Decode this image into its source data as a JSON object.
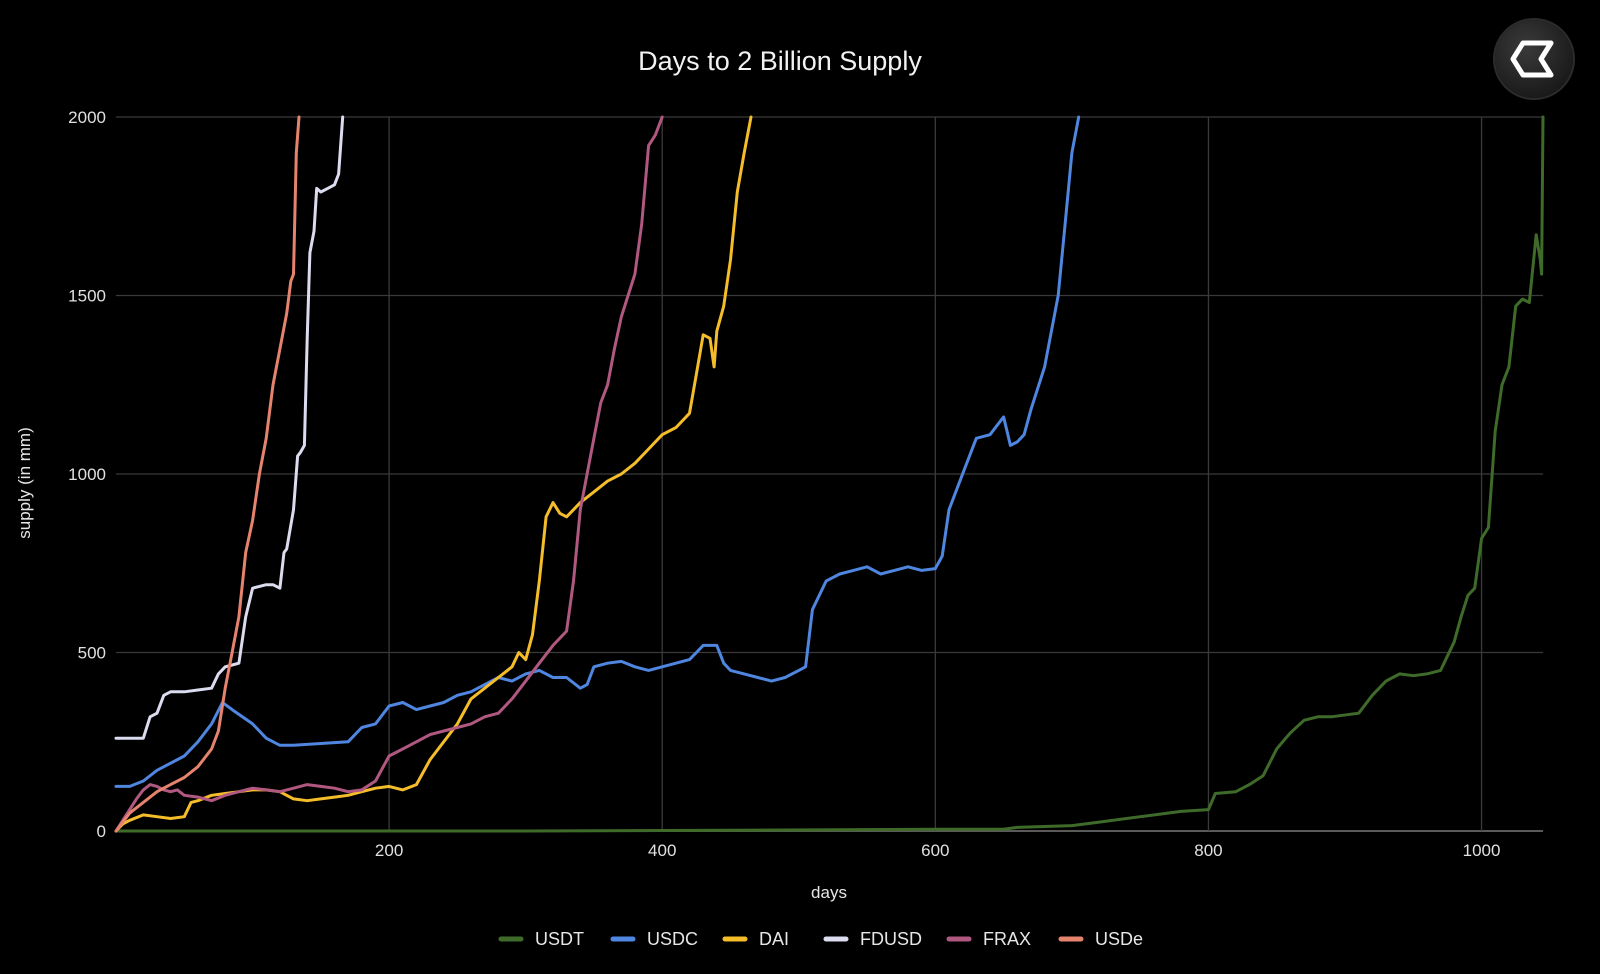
{
  "chart_data": {
    "type": "line",
    "title": "Days to 2 Billion Supply",
    "xlabel": "days",
    "ylabel": "supply (in mm)",
    "xlim": [
      0,
      1045
    ],
    "ylim": [
      0,
      2000
    ],
    "x_ticks": [
      200,
      400,
      600,
      800,
      1000
    ],
    "y_ticks": [
      0,
      500,
      1000,
      1500,
      2000
    ],
    "grid": true,
    "legend_position": "bottom-center",
    "series": [
      {
        "name": "USDT",
        "color": "#3f6b2a",
        "points": [
          [
            0,
            0
          ],
          [
            300,
            0
          ],
          [
            450,
            2
          ],
          [
            600,
            5
          ],
          [
            650,
            5
          ],
          [
            660,
            10
          ],
          [
            700,
            15
          ],
          [
            720,
            25
          ],
          [
            750,
            40
          ],
          [
            780,
            55
          ],
          [
            800,
            60
          ],
          [
            805,
            105
          ],
          [
            820,
            110
          ],
          [
            830,
            130
          ],
          [
            840,
            155
          ],
          [
            850,
            230
          ],
          [
            860,
            275
          ],
          [
            870,
            310
          ],
          [
            880,
            320
          ],
          [
            890,
            320
          ],
          [
            910,
            330
          ],
          [
            920,
            380
          ],
          [
            930,
            420
          ],
          [
            940,
            440
          ],
          [
            950,
            435
          ],
          [
            960,
            440
          ],
          [
            970,
            450
          ],
          [
            980,
            530
          ],
          [
            985,
            600
          ],
          [
            990,
            660
          ],
          [
            995,
            680
          ],
          [
            1000,
            820
          ],
          [
            1005,
            850
          ],
          [
            1010,
            1120
          ],
          [
            1015,
            1250
          ],
          [
            1020,
            1300
          ],
          [
            1025,
            1470
          ],
          [
            1030,
            1490
          ],
          [
            1035,
            1480
          ],
          [
            1040,
            1670
          ],
          [
            1043,
            1600
          ],
          [
            1044,
            1560
          ],
          [
            1045,
            2000
          ]
        ]
      },
      {
        "name": "USDC",
        "color": "#4f86e0",
        "points": [
          [
            0,
            125
          ],
          [
            10,
            125
          ],
          [
            20,
            140
          ],
          [
            30,
            170
          ],
          [
            40,
            190
          ],
          [
            50,
            210
          ],
          [
            60,
            250
          ],
          [
            70,
            300
          ],
          [
            78,
            360
          ],
          [
            85,
            340
          ],
          [
            100,
            300
          ],
          [
            110,
            260
          ],
          [
            120,
            240
          ],
          [
            130,
            240
          ],
          [
            150,
            245
          ],
          [
            170,
            250
          ],
          [
            180,
            290
          ],
          [
            190,
            300
          ],
          [
            200,
            350
          ],
          [
            210,
            360
          ],
          [
            220,
            340
          ],
          [
            230,
            350
          ],
          [
            240,
            360
          ],
          [
            250,
            380
          ],
          [
            260,
            390
          ],
          [
            270,
            410
          ],
          [
            280,
            430
          ],
          [
            290,
            420
          ],
          [
            300,
            440
          ],
          [
            310,
            450
          ],
          [
            320,
            430
          ],
          [
            330,
            430
          ],
          [
            340,
            400
          ],
          [
            345,
            410
          ],
          [
            350,
            460
          ],
          [
            360,
            470
          ],
          [
            370,
            475
          ],
          [
            380,
            460
          ],
          [
            390,
            450
          ],
          [
            400,
            460
          ],
          [
            410,
            470
          ],
          [
            420,
            480
          ],
          [
            425,
            500
          ],
          [
            430,
            520
          ],
          [
            440,
            520
          ],
          [
            445,
            470
          ],
          [
            450,
            450
          ],
          [
            460,
            440
          ],
          [
            470,
            430
          ],
          [
            480,
            420
          ],
          [
            490,
            430
          ],
          [
            500,
            450
          ],
          [
            505,
            460
          ],
          [
            510,
            620
          ],
          [
            520,
            700
          ],
          [
            530,
            720
          ],
          [
            540,
            730
          ],
          [
            550,
            740
          ],
          [
            560,
            720
          ],
          [
            570,
            730
          ],
          [
            580,
            740
          ],
          [
            590,
            730
          ],
          [
            600,
            735
          ],
          [
            605,
            770
          ],
          [
            610,
            900
          ],
          [
            620,
            1000
          ],
          [
            630,
            1100
          ],
          [
            640,
            1110
          ],
          [
            650,
            1160
          ],
          [
            655,
            1080
          ],
          [
            660,
            1090
          ],
          [
            665,
            1110
          ],
          [
            670,
            1180
          ],
          [
            680,
            1300
          ],
          [
            690,
            1500
          ],
          [
            695,
            1700
          ],
          [
            700,
            1900
          ],
          [
            705,
            2000
          ]
        ]
      },
      {
        "name": "DAI",
        "color": "#f5bd2a",
        "points": [
          [
            0,
            0
          ],
          [
            5,
            20
          ],
          [
            10,
            30
          ],
          [
            20,
            45
          ],
          [
            30,
            40
          ],
          [
            40,
            35
          ],
          [
            50,
            40
          ],
          [
            55,
            80
          ],
          [
            60,
            85
          ],
          [
            70,
            100
          ],
          [
            80,
            105
          ],
          [
            90,
            110
          ],
          [
            100,
            115
          ],
          [
            110,
            115
          ],
          [
            120,
            110
          ],
          [
            130,
            90
          ],
          [
            140,
            85
          ],
          [
            150,
            90
          ],
          [
            160,
            95
          ],
          [
            170,
            100
          ],
          [
            180,
            110
          ],
          [
            190,
            120
          ],
          [
            200,
            125
          ],
          [
            210,
            115
          ],
          [
            220,
            130
          ],
          [
            230,
            200
          ],
          [
            240,
            250
          ],
          [
            250,
            300
          ],
          [
            260,
            370
          ],
          [
            270,
            400
          ],
          [
            280,
            430
          ],
          [
            290,
            460
          ],
          [
            295,
            500
          ],
          [
            300,
            480
          ],
          [
            305,
            550
          ],
          [
            310,
            700
          ],
          [
            315,
            880
          ],
          [
            320,
            920
          ],
          [
            325,
            890
          ],
          [
            330,
            880
          ],
          [
            335,
            900
          ],
          [
            340,
            920
          ],
          [
            350,
            950
          ],
          [
            360,
            980
          ],
          [
            370,
            1000
          ],
          [
            380,
            1030
          ],
          [
            390,
            1070
          ],
          [
            400,
            1110
          ],
          [
            410,
            1130
          ],
          [
            420,
            1170
          ],
          [
            425,
            1280
          ],
          [
            430,
            1390
          ],
          [
            435,
            1380
          ],
          [
            438,
            1300
          ],
          [
            440,
            1400
          ],
          [
            445,
            1470
          ],
          [
            450,
            1600
          ],
          [
            455,
            1790
          ],
          [
            460,
            1900
          ],
          [
            465,
            2000
          ]
        ]
      },
      {
        "name": "FDUSD",
        "color": "#dcdcf0",
        "points": [
          [
            0,
            260
          ],
          [
            10,
            260
          ],
          [
            20,
            260
          ],
          [
            25,
            320
          ],
          [
            30,
            330
          ],
          [
            35,
            380
          ],
          [
            40,
            390
          ],
          [
            50,
            390
          ],
          [
            60,
            395
          ],
          [
            70,
            400
          ],
          [
            75,
            440
          ],
          [
            80,
            460
          ],
          [
            85,
            465
          ],
          [
            90,
            470
          ],
          [
            95,
            600
          ],
          [
            100,
            680
          ],
          [
            110,
            690
          ],
          [
            115,
            690
          ],
          [
            120,
            680
          ],
          [
            123,
            780
          ],
          [
            125,
            790
          ],
          [
            130,
            900
          ],
          [
            133,
            1050
          ],
          [
            135,
            1060
          ],
          [
            138,
            1080
          ],
          [
            140,
            1380
          ],
          [
            142,
            1620
          ],
          [
            145,
            1680
          ],
          [
            147,
            1800
          ],
          [
            150,
            1790
          ],
          [
            155,
            1800
          ],
          [
            160,
            1810
          ],
          [
            163,
            1840
          ],
          [
            166,
            2000
          ]
        ]
      },
      {
        "name": "FRAX",
        "color": "#b05880",
        "points": [
          [
            0,
            0
          ],
          [
            5,
            30
          ],
          [
            10,
            60
          ],
          [
            15,
            90
          ],
          [
            20,
            115
          ],
          [
            25,
            130
          ],
          [
            30,
            125
          ],
          [
            35,
            115
          ],
          [
            40,
            110
          ],
          [
            45,
            115
          ],
          [
            50,
            100
          ],
          [
            60,
            95
          ],
          [
            70,
            85
          ],
          [
            80,
            100
          ],
          [
            90,
            110
          ],
          [
            100,
            120
          ],
          [
            110,
            115
          ],
          [
            120,
            110
          ],
          [
            130,
            120
          ],
          [
            140,
            130
          ],
          [
            150,
            125
          ],
          [
            160,
            120
          ],
          [
            170,
            110
          ],
          [
            180,
            115
          ],
          [
            190,
            140
          ],
          [
            200,
            210
          ],
          [
            210,
            230
          ],
          [
            220,
            250
          ],
          [
            230,
            270
          ],
          [
            240,
            280
          ],
          [
            250,
            290
          ],
          [
            260,
            300
          ],
          [
            270,
            320
          ],
          [
            280,
            330
          ],
          [
            290,
            370
          ],
          [
            300,
            420
          ],
          [
            310,
            470
          ],
          [
            320,
            520
          ],
          [
            330,
            560
          ],
          [
            335,
            700
          ],
          [
            340,
            900
          ],
          [
            345,
            1000
          ],
          [
            350,
            1100
          ],
          [
            355,
            1200
          ],
          [
            360,
            1250
          ],
          [
            365,
            1350
          ],
          [
            370,
            1440
          ],
          [
            375,
            1500
          ],
          [
            380,
            1560
          ],
          [
            385,
            1700
          ],
          [
            390,
            1920
          ],
          [
            395,
            1950
          ],
          [
            400,
            2000
          ]
        ]
      },
      {
        "name": "USDe",
        "color": "#e6836e",
        "points": [
          [
            0,
            0
          ],
          [
            10,
            50
          ],
          [
            20,
            80
          ],
          [
            30,
            110
          ],
          [
            40,
            130
          ],
          [
            50,
            150
          ],
          [
            60,
            180
          ],
          [
            70,
            230
          ],
          [
            75,
            280
          ],
          [
            80,
            400
          ],
          [
            85,
            500
          ],
          [
            90,
            600
          ],
          [
            95,
            780
          ],
          [
            100,
            870
          ],
          [
            105,
            1000
          ],
          [
            110,
            1100
          ],
          [
            115,
            1250
          ],
          [
            120,
            1350
          ],
          [
            125,
            1450
          ],
          [
            128,
            1540
          ],
          [
            130,
            1560
          ],
          [
            132,
            1900
          ],
          [
            134,
            2000
          ]
        ]
      }
    ]
  },
  "logo": {
    "icon": "hexagon-sigma-icon"
  }
}
